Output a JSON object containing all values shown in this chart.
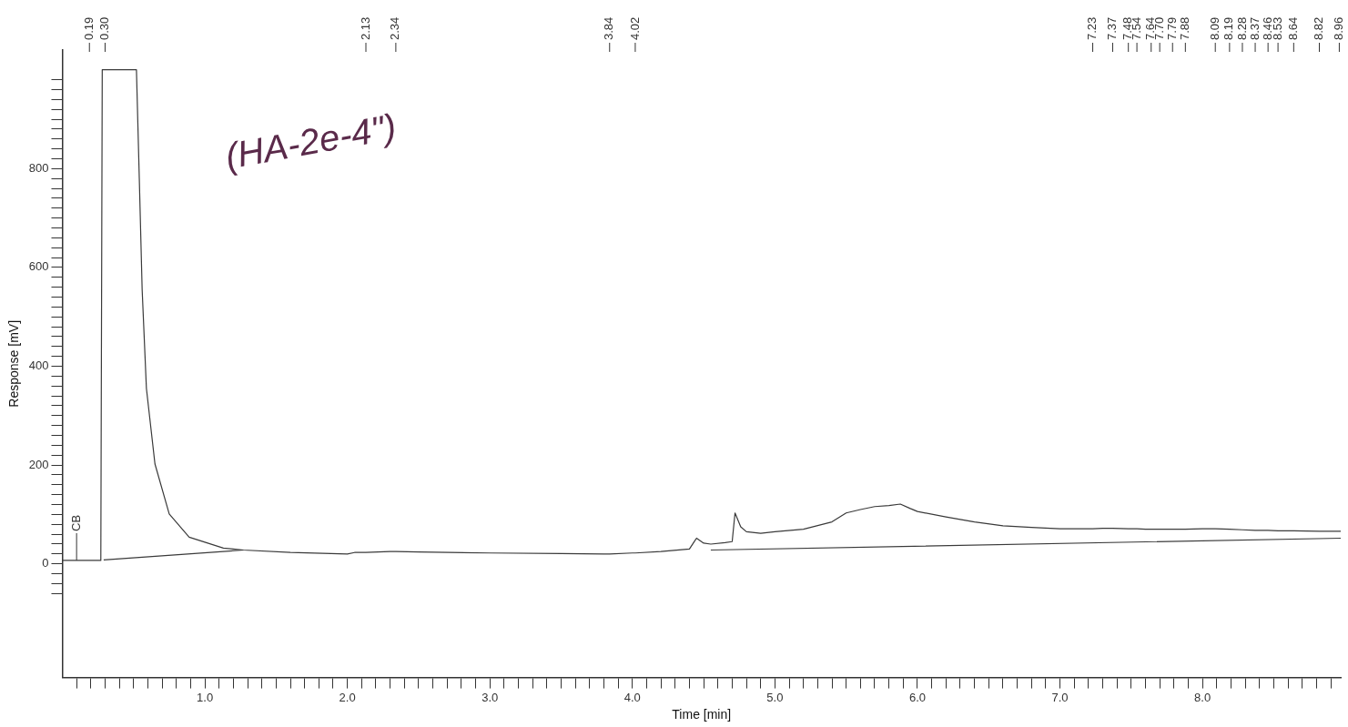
{
  "chart_data": {
    "type": "line",
    "xlabel": "Time [min]",
    "ylabel": "Response [mV]",
    "grid": false,
    "legend": false,
    "marker": "none",
    "line_style": "solid",
    "xlim": [
      0,
      8.97
    ],
    "ylim": [
      -230,
      1040
    ],
    "xticks": [
      {
        "value": 0.1,
        "label": null
      },
      {
        "value": 0.2,
        "label": null
      },
      {
        "value": 0.3,
        "label": null
      },
      {
        "value": 0.4,
        "label": null
      },
      {
        "value": 0.5,
        "label": null
      },
      {
        "value": 0.6,
        "label": null
      },
      {
        "value": 0.7,
        "label": null
      },
      {
        "value": 0.8,
        "label": null
      },
      {
        "value": 0.9,
        "label": null
      },
      {
        "value": 1,
        "label": "1.0"
      },
      {
        "value": 1.1,
        "label": null
      },
      {
        "value": 1.2,
        "label": null
      },
      {
        "value": 1.3,
        "label": null
      },
      {
        "value": 1.4,
        "label": null
      },
      {
        "value": 1.5,
        "label": null
      },
      {
        "value": 1.6,
        "label": null
      },
      {
        "value": 1.7,
        "label": null
      },
      {
        "value": 1.8,
        "label": null
      },
      {
        "value": 1.9,
        "label": null
      },
      {
        "value": 2,
        "label": "2.0"
      },
      {
        "value": 2.1,
        "label": null
      },
      {
        "value": 2.2,
        "label": null
      },
      {
        "value": 2.3,
        "label": null
      },
      {
        "value": 2.4,
        "label": null
      },
      {
        "value": 2.5,
        "label": null
      },
      {
        "value": 2.6,
        "label": null
      },
      {
        "value": 2.7,
        "label": null
      },
      {
        "value": 2.8,
        "label": null
      },
      {
        "value": 2.9,
        "label": null
      },
      {
        "value": 3,
        "label": "3.0"
      },
      {
        "value": 3.1,
        "label": null
      },
      {
        "value": 3.2,
        "label": null
      },
      {
        "value": 3.3,
        "label": null
      },
      {
        "value": 3.4,
        "label": null
      },
      {
        "value": 3.5,
        "label": null
      },
      {
        "value": 3.6,
        "label": null
      },
      {
        "value": 3.7,
        "label": null
      },
      {
        "value": 3.8,
        "label": null
      },
      {
        "value": 3.9,
        "label": null
      },
      {
        "value": 4,
        "label": "4.0"
      },
      {
        "value": 4.1,
        "label": null
      },
      {
        "value": 4.2,
        "label": null
      },
      {
        "value": 4.3,
        "label": null
      },
      {
        "value": 4.4,
        "label": null
      },
      {
        "value": 4.5,
        "label": null
      },
      {
        "value": 4.6,
        "label": null
      },
      {
        "value": 4.7,
        "label": null
      },
      {
        "value": 4.8,
        "label": null
      },
      {
        "value": 4.9,
        "label": null
      },
      {
        "value": 5,
        "label": "5.0"
      },
      {
        "value": 5.1,
        "label": null
      },
      {
        "value": 5.2,
        "label": null
      },
      {
        "value": 5.3,
        "label": null
      },
      {
        "value": 5.4,
        "label": null
      },
      {
        "value": 5.5,
        "label": null
      },
      {
        "value": 5.6,
        "label": null
      },
      {
        "value": 5.7,
        "label": null
      },
      {
        "value": 5.8,
        "label": null
      },
      {
        "value": 5.9,
        "label": null
      },
      {
        "value": 6,
        "label": "6.0"
      },
      {
        "value": 6.1,
        "label": null
      },
      {
        "value": 6.2,
        "label": null
      },
      {
        "value": 6.3,
        "label": null
      },
      {
        "value": 6.4,
        "label": null
      },
      {
        "value": 6.5,
        "label": null
      },
      {
        "value": 6.6,
        "label": null
      },
      {
        "value": 6.7,
        "label": null
      },
      {
        "value": 6.8,
        "label": null
      },
      {
        "value": 6.9,
        "label": null
      },
      {
        "value": 7,
        "label": "7.0"
      },
      {
        "value": 7.1,
        "label": null
      },
      {
        "value": 7.2,
        "label": null
      },
      {
        "value": 7.3,
        "label": null
      },
      {
        "value": 7.4,
        "label": null
      },
      {
        "value": 7.5,
        "label": null
      },
      {
        "value": 7.6,
        "label": null
      },
      {
        "value": 7.7,
        "label": null
      },
      {
        "value": 7.8,
        "label": null
      },
      {
        "value": 7.9,
        "label": null
      },
      {
        "value": 8,
        "label": "8.0"
      },
      {
        "value": 8.1,
        "label": null
      },
      {
        "value": 8.2,
        "label": null
      },
      {
        "value": 8.3,
        "label": null
      },
      {
        "value": 8.4,
        "label": null
      },
      {
        "value": 8.5,
        "label": null
      },
      {
        "value": 8.6,
        "label": null
      },
      {
        "value": 8.7,
        "label": null
      },
      {
        "value": 8.8,
        "label": null
      },
      {
        "value": 8.9,
        "label": null
      }
    ],
    "yticks": [
      {
        "value": -60,
        "label": null
      },
      {
        "value": -40,
        "label": null
      },
      {
        "value": -20,
        "label": null
      },
      0,
      {
        "value": 20,
        "label": null
      },
      {
        "value": 40,
        "label": null
      },
      {
        "value": 60,
        "label": null
      },
      {
        "value": 80,
        "label": null
      },
      {
        "value": 100,
        "label": null
      },
      {
        "value": 120,
        "label": null
      },
      {
        "value": 140,
        "label": null
      },
      {
        "value": 160,
        "label": null
      },
      {
        "value": 180,
        "label": null
      },
      200,
      {
        "value": 220,
        "label": null
      },
      {
        "value": 240,
        "label": null
      },
      {
        "value": 260,
        "label": null
      },
      {
        "value": 280,
        "label": null
      },
      {
        "value": 300,
        "label": null
      },
      {
        "value": 320,
        "label": null
      },
      {
        "value": 340,
        "label": null
      },
      {
        "value": 360,
        "label": null
      },
      {
        "value": 380,
        "label": null
      },
      400,
      {
        "value": 420,
        "label": null
      },
      {
        "value": 440,
        "label": null
      },
      {
        "value": 460,
        "label": null
      },
      {
        "value": 480,
        "label": null
      },
      {
        "value": 500,
        "label": null
      },
      {
        "value": 520,
        "label": null
      },
      {
        "value": 540,
        "label": null
      },
      {
        "value": 560,
        "label": null
      },
      {
        "value": 580,
        "label": null
      },
      600,
      {
        "value": 620,
        "label": null
      },
      {
        "value": 640,
        "label": null
      },
      {
        "value": 660,
        "label": null
      },
      {
        "value": 680,
        "label": null
      },
      {
        "value": 700,
        "label": null
      },
      {
        "value": 720,
        "label": null
      },
      {
        "value": 740,
        "label": null
      },
      {
        "value": 760,
        "label": null
      },
      {
        "value": 780,
        "label": null
      },
      800,
      {
        "value": 820,
        "label": null
      },
      {
        "value": 840,
        "label": null
      },
      {
        "value": 860,
        "label": null
      },
      {
        "value": 880,
        "label": null
      },
      {
        "value": 900,
        "label": null
      },
      {
        "value": 920,
        "label": null
      },
      {
        "value": 940,
        "label": null
      },
      {
        "value": 960,
        "label": null
      },
      {
        "value": 980,
        "label": null
      }
    ],
    "series": [
      {
        "color": "#3a3a3a",
        "x": [
          0,
          0.1,
          0.19,
          0.27,
          0.28,
          0.3,
          0.52,
          0.54,
          0.56,
          0.59,
          0.65,
          0.75,
          0.89,
          1.13,
          1.27,
          1.6,
          2.0,
          2.05,
          2.13,
          2.3,
          2.34,
          2.5,
          3.0,
          3.5,
          3.8,
          3.84,
          4.0,
          4.02,
          4.2,
          4.4,
          4.45,
          4.5,
          4.55,
          4.65,
          4.7,
          4.72,
          4.76,
          4.8,
          4.9,
          5.0,
          5.2,
          5.4,
          5.5,
          5.6,
          5.7,
          5.8,
          5.88,
          5.95,
          6.0,
          6.2,
          6.4,
          6.6,
          6.8,
          7.0,
          7.23,
          7.3,
          7.37,
          7.48,
          7.54,
          7.6,
          7.64,
          7.7,
          7.79,
          7.88,
          8.0,
          8.09,
          8.19,
          8.28,
          8.37,
          8.4,
          8.46,
          8.53,
          8.64,
          8.82,
          8.96,
          8.97
        ],
        "values": [
          7,
          7,
          7,
          7,
          1000,
          1000,
          1000,
          780,
          555,
          355,
          202,
          101,
          54,
          32,
          28,
          23,
          20,
          23,
          23,
          25,
          25,
          24,
          22,
          21,
          20,
          20,
          22,
          22,
          25,
          30,
          52,
          42,
          40,
          43,
          45,
          103,
          75,
          65,
          62,
          65,
          70,
          85,
          103,
          110,
          116,
          118,
          121,
          112,
          106,
          95,
          85,
          77,
          74,
          71,
          71,
          72,
          72,
          71,
          71,
          70,
          70,
          70,
          70,
          70,
          71,
          71,
          70,
          69,
          68,
          68,
          68,
          67,
          67,
          66,
          66,
          66
        ]
      },
      {
        "color": "#3a3a3a",
        "x": [
          0.29,
          1.27,
          1.3,
          4.55,
          8.97
        ],
        "values": [
          8,
          28,
          null,
          28,
          52
        ]
      }
    ],
    "annotations": [
      {
        "text": "CB",
        "x": 0.1,
        "y": 7
      },
      "(HA-2e-4\")"
    ],
    "ref_lines": [
      {
        "axis": "x",
        "value": 0.19,
        "label": "0.19"
      },
      {
        "axis": "x",
        "value": 0.3,
        "label": "0.30"
      },
      {
        "axis": "x",
        "value": 2.13,
        "label": "2.13"
      },
      {
        "axis": "x",
        "value": 2.34,
        "label": "2.34"
      },
      {
        "axis": "x",
        "value": 3.84,
        "label": "3.84"
      },
      {
        "axis": "x",
        "value": 4.02,
        "label": "4.02"
      },
      {
        "axis": "x",
        "value": 7.23,
        "label": "7.23"
      },
      {
        "axis": "x",
        "value": 7.37,
        "label": "7.37"
      },
      {
        "axis": "x",
        "value": 7.48,
        "label": "7.48"
      },
      {
        "axis": "x",
        "value": 7.54,
        "label": "7.54"
      },
      {
        "axis": "x",
        "value": 7.64,
        "label": "7.64"
      },
      {
        "axis": "x",
        "value": 7.7,
        "label": "7.70"
      },
      {
        "axis": "x",
        "value": 7.79,
        "label": "7.79"
      },
      {
        "axis": "x",
        "value": 7.88,
        "label": "7.88"
      },
      {
        "axis": "x",
        "value": 8.09,
        "label": "8.09"
      },
      {
        "axis": "x",
        "value": 8.19,
        "label": "8.19"
      },
      {
        "axis": "x",
        "value": 8.28,
        "label": "8.28"
      },
      {
        "axis": "x",
        "value": 8.37,
        "label": "8.37"
      },
      {
        "axis": "x",
        "value": 8.46,
        "label": "8.46"
      },
      {
        "axis": "x",
        "value": 8.53,
        "label": "8.53"
      },
      {
        "axis": "x",
        "value": 8.64,
        "label": "8.64"
      },
      {
        "axis": "x",
        "value": 8.82,
        "label": "8.82"
      },
      {
        "axis": "x",
        "value": 8.96,
        "label": "8.96"
      }
    ]
  }
}
